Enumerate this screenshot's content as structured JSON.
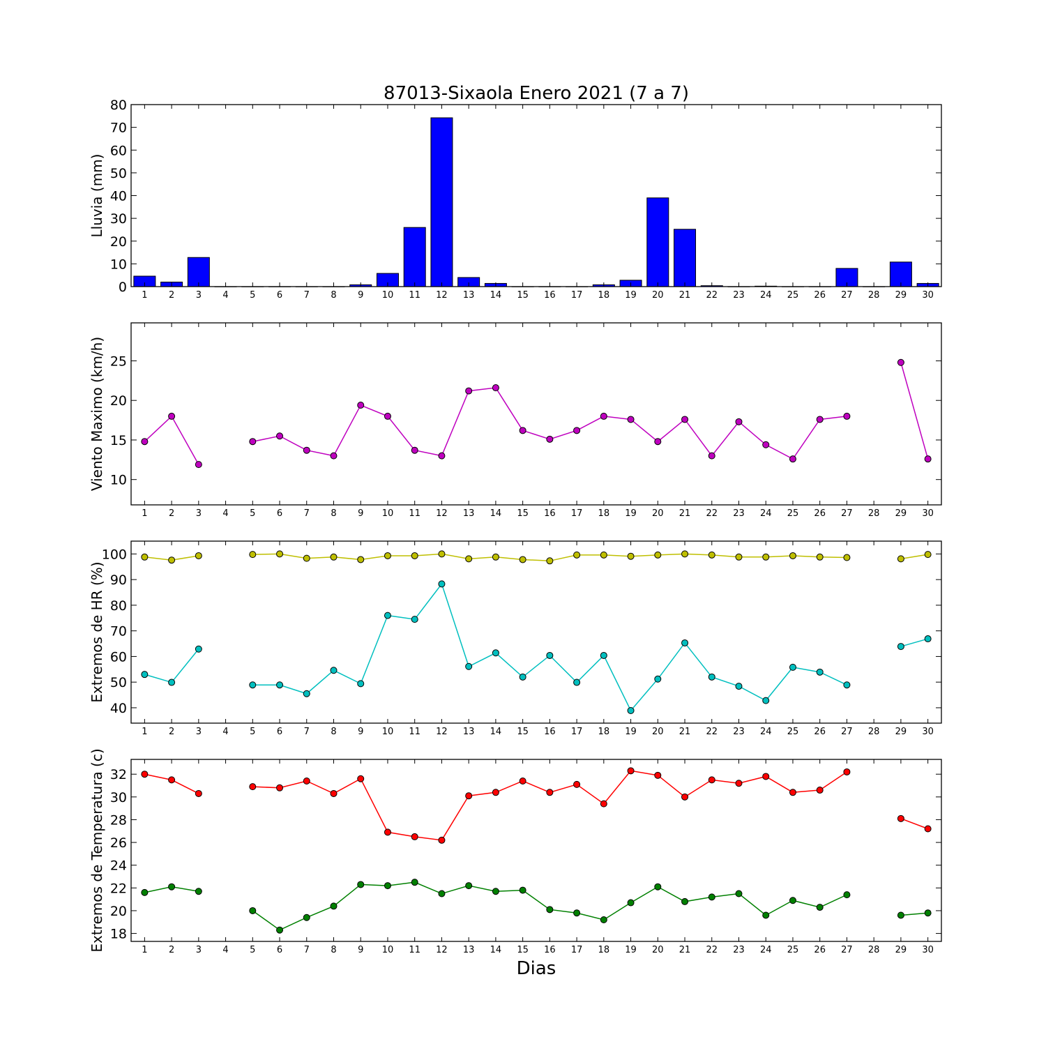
{
  "title": "87013-Sixaola Enero 2021  (7 a 7)",
  "xlabel": "Dias",
  "chart_data": [
    {
      "type": "bar",
      "ylabel": "Lluvia (mm)",
      "ylim": [
        0,
        80
      ],
      "yticks": [
        0,
        10,
        20,
        30,
        40,
        50,
        60,
        70,
        80
      ],
      "xlim": [
        0.5,
        30.5
      ],
      "categories": [
        1,
        2,
        3,
        4,
        5,
        6,
        7,
        8,
        9,
        10,
        11,
        12,
        13,
        14,
        15,
        16,
        17,
        18,
        19,
        20,
        21,
        22,
        23,
        24,
        25,
        26,
        27,
        28,
        29,
        30
      ],
      "series": [
        {
          "color": "#0000ff",
          "values": [
            4.6,
            2.0,
            12.8,
            0,
            0,
            0,
            0,
            0,
            0.8,
            5.8,
            26.0,
            74.2,
            4.0,
            1.4,
            0,
            0,
            0,
            0.8,
            2.8,
            39.0,
            25.2,
            0.4,
            0,
            0.2,
            0,
            0,
            8.0,
            0,
            10.8,
            1.4
          ]
        }
      ],
      "grid": false
    },
    {
      "type": "line",
      "ylabel": "Viento Maximo (km/h)",
      "ylim": [
        6.8,
        29.8
      ],
      "yticks": [
        10,
        15,
        20,
        25
      ],
      "xlim": [
        0.5,
        30.5
      ],
      "x": [
        1,
        2,
        3,
        4,
        5,
        6,
        7,
        8,
        9,
        10,
        11,
        12,
        13,
        14,
        15,
        16,
        17,
        18,
        19,
        20,
        21,
        22,
        23,
        24,
        25,
        26,
        27,
        28,
        29,
        30
      ],
      "series": [
        {
          "color": "#bf00bf",
          "values": [
            14.8,
            18.0,
            11.9,
            null,
            14.8,
            15.5,
            13.7,
            13.0,
            19.4,
            18.0,
            13.7,
            13.0,
            21.2,
            21.6,
            16.2,
            15.1,
            16.2,
            18.0,
            17.6,
            14.8,
            17.6,
            13.0,
            17.3,
            14.4,
            12.6,
            17.6,
            18.0,
            null,
            24.8,
            12.6
          ]
        }
      ],
      "grid": false
    },
    {
      "type": "line",
      "ylabel": "Extremos de HR (%)",
      "ylim": [
        34,
        105
      ],
      "yticks": [
        40,
        50,
        60,
        70,
        80,
        90,
        100
      ],
      "xlim": [
        0.5,
        30.5
      ],
      "x": [
        1,
        2,
        3,
        4,
        5,
        6,
        7,
        8,
        9,
        10,
        11,
        12,
        13,
        14,
        15,
        16,
        17,
        18,
        19,
        20,
        21,
        22,
        23,
        24,
        25,
        26,
        27,
        28,
        29,
        30
      ],
      "series": [
        {
          "color": "#bfbf00",
          "values": [
            98.8,
            97.6,
            99.3,
            null,
            99.8,
            100.0,
            98.3,
            98.8,
            97.8,
            99.3,
            99.3,
            100.0,
            98.1,
            98.8,
            97.8,
            97.3,
            99.6,
            99.6,
            99.1,
            99.6,
            100.0,
            99.6,
            98.8,
            98.8,
            99.3,
            98.8,
            98.6,
            null,
            98.1,
            99.8
          ]
        },
        {
          "color": "#00bfbf",
          "values": [
            53.0,
            49.9,
            62.9,
            null,
            48.9,
            48.9,
            45.5,
            54.6,
            49.4,
            76.0,
            74.5,
            88.3,
            56.1,
            61.4,
            52.0,
            60.4,
            49.9,
            60.4,
            38.9,
            51.2,
            65.3,
            52.0,
            48.4,
            42.8,
            55.8,
            53.9,
            48.9,
            null,
            63.9,
            66.9
          ]
        }
      ],
      "grid": false
    },
    {
      "type": "line",
      "ylabel": "Extremos de Temperatura (c)",
      "ylim": [
        17.3,
        33.3
      ],
      "yticks": [
        18,
        20,
        22,
        24,
        26,
        28,
        30,
        32
      ],
      "xlim": [
        0.5,
        30.5
      ],
      "x": [
        1,
        2,
        3,
        4,
        5,
        6,
        7,
        8,
        9,
        10,
        11,
        12,
        13,
        14,
        15,
        16,
        17,
        18,
        19,
        20,
        21,
        22,
        23,
        24,
        25,
        26,
        27,
        28,
        29,
        30
      ],
      "series": [
        {
          "color": "#ff0000",
          "values": [
            32.0,
            31.5,
            30.3,
            null,
            30.9,
            30.8,
            31.4,
            30.3,
            31.6,
            26.9,
            26.5,
            26.2,
            30.1,
            30.4,
            31.4,
            30.4,
            31.1,
            29.4,
            32.3,
            31.9,
            30.0,
            31.5,
            31.2,
            31.8,
            30.4,
            30.6,
            32.2,
            null,
            28.1,
            27.2
          ]
        },
        {
          "color": "#008000",
          "values": [
            21.6,
            22.1,
            21.7,
            null,
            20.0,
            18.3,
            19.4,
            20.4,
            22.3,
            22.2,
            22.5,
            21.5,
            22.2,
            21.7,
            21.8,
            20.1,
            19.8,
            19.2,
            20.7,
            22.1,
            20.8,
            21.2,
            21.5,
            19.6,
            20.9,
            20.3,
            21.4,
            null,
            19.6,
            19.8
          ]
        }
      ],
      "grid": false
    }
  ]
}
